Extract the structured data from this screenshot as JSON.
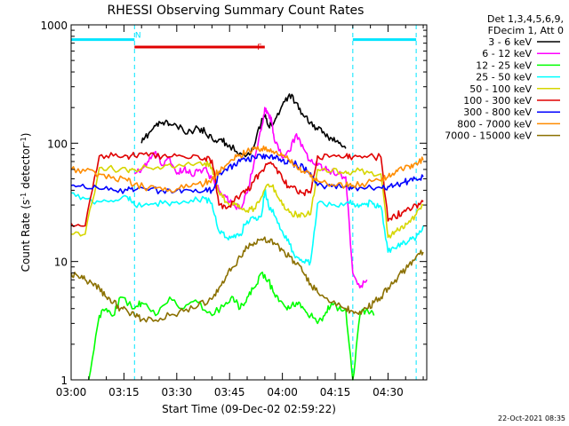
{
  "chart_data": {
    "type": "line",
    "title": "RHESSI Observing Summary Count Rates",
    "xlabel": "Start Time (09-Dec-02 02:59:22)",
    "ylabel": "Count Rate (s⁻¹ detector⁻¹)",
    "ylabel_base": "Count Rate (s",
    "ylabel_sup1": "-1",
    "ylabel_mid": " detector",
    "ylabel_sup2": "-1",
    "ylabel_end": ")",
    "yscale": "log",
    "ylim": [
      1,
      1000
    ],
    "xlim_minutes": [
      0,
      101
    ],
    "x_unit": "minutes since 03:00",
    "x_ticks": [
      {
        "label": "03:00",
        "min": 0
      },
      {
        "label": "03:15",
        "min": 15
      },
      {
        "label": "03:30",
        "min": 30
      },
      {
        "label": "03:45",
        "min": 45
      },
      {
        "label": "04:00",
        "min": 60
      },
      {
        "label": "04:15",
        "min": 75
      },
      {
        "label": "04:30",
        "min": 90
      }
    ],
    "y_ticks": [
      {
        "label": "1",
        "value": 1
      },
      {
        "label": "10",
        "value": 10
      },
      {
        "label": "100",
        "value": 100
      },
      {
        "label": "1000",
        "value": 1000
      }
    ],
    "legend_header": [
      "Det 1,3,4,5,6,9,",
      "FDecim 1, Att 0"
    ],
    "legend_position": "right",
    "flags": [
      {
        "label": "N",
        "color": "#00e5ff",
        "y_value": 750,
        "segments": [
          [
            0,
            18
          ],
          [
            80,
            98
          ]
        ]
      },
      {
        "label": "F",
        "color": "#e00000",
        "y_value": 650,
        "segments": [
          [
            18,
            55
          ]
        ]
      }
    ],
    "night_boundaries_min": [
      18,
      80,
      98
    ],
    "series": [
      {
        "name": "3 - 6 keV",
        "color": "#000000",
        "x": [
          20,
          22,
          24,
          26,
          28,
          30,
          33,
          36,
          38,
          40,
          42,
          44,
          47,
          50,
          52,
          54,
          55,
          56,
          58,
          60,
          62,
          64,
          66,
          68,
          70,
          72,
          74,
          76,
          78
        ],
        "y": [
          100,
          120,
          140,
          150,
          145,
          140,
          120,
          135,
          125,
          110,
          108,
          100,
          85,
          80,
          95,
          150,
          170,
          140,
          160,
          210,
          260,
          220,
          170,
          150,
          130,
          120,
          110,
          100,
          90
        ]
      },
      {
        "name": "6 - 12 keV",
        "color": "#ff00ff",
        "x": [
          18,
          20,
          22,
          24,
          26,
          28,
          30,
          32,
          34,
          36,
          38,
          40,
          42,
          44,
          46,
          48,
          50,
          52,
          54,
          55,
          56,
          57,
          58,
          60,
          62,
          64,
          66,
          68,
          70,
          72,
          74,
          76,
          78,
          80,
          82,
          84
        ],
        "y": [
          55,
          60,
          70,
          85,
          65,
          75,
          55,
          60,
          55,
          58,
          62,
          50,
          40,
          35,
          30,
          28,
          38,
          70,
          130,
          200,
          180,
          150,
          100,
          75,
          85,
          120,
          90,
          70,
          65,
          60,
          58,
          55,
          52,
          8,
          6,
          7
        ]
      },
      {
        "name": "12 - 25 keV",
        "color": "#00ff00",
        "x": [
          5,
          8,
          10,
          12,
          14,
          18,
          20,
          24,
          28,
          32,
          36,
          40,
          44,
          46,
          48,
          50,
          52,
          54,
          56,
          58,
          60,
          62,
          64,
          66,
          68,
          70,
          72,
          74,
          76,
          78,
          80,
          82,
          84,
          86
        ],
        "y": [
          1,
          3.5,
          4,
          3.5,
          5,
          4,
          4.5,
          3.5,
          5,
          4,
          4.5,
          3.5,
          4.5,
          5,
          4,
          5,
          6,
          8,
          7,
          5,
          4.5,
          4,
          4.5,
          4,
          3.5,
          3,
          3.5,
          4.5,
          4,
          4,
          1,
          3.5,
          4,
          3.5
        ]
      },
      {
        "name": "25 - 50 keV",
        "color": "#00ffff",
        "x": [
          0,
          4,
          8,
          12,
          16,
          18,
          22,
          26,
          30,
          34,
          38,
          40,
          42,
          44,
          46,
          48,
          50,
          52,
          54,
          55,
          56,
          58,
          60,
          62,
          64,
          66,
          68,
          70,
          74,
          78,
          80,
          82,
          84,
          86,
          88,
          90,
          92,
          94,
          96,
          98,
          100
        ],
        "y": [
          38,
          34,
          32,
          32,
          35,
          30,
          30,
          31,
          32,
          33,
          34,
          31,
          18,
          16,
          16,
          17,
          22,
          23,
          24,
          40,
          30,
          24,
          18,
          14,
          11,
          10,
          10,
          31,
          30,
          31,
          31,
          30,
          31,
          31,
          29,
          12,
          13,
          14,
          15,
          16,
          20
        ]
      },
      {
        "name": "50 - 100 keV",
        "color": "#d6d600",
        "x": [
          0,
          4,
          8,
          12,
          16,
          18,
          22,
          26,
          30,
          34,
          38,
          40,
          42,
          44,
          46,
          48,
          50,
          52,
          54,
          56,
          58,
          60,
          62,
          64,
          66,
          68,
          70,
          74,
          78,
          80,
          84,
          88,
          90,
          92,
          94,
          96,
          98,
          100
        ],
        "y": [
          17,
          17,
          62,
          60,
          58,
          60,
          62,
          62,
          64,
          66,
          68,
          62,
          38,
          32,
          30,
          28,
          27,
          28,
          35,
          45,
          40,
          30,
          26,
          25,
          25,
          25,
          60,
          58,
          58,
          58,
          58,
          55,
          16,
          18,
          20,
          22,
          25,
          30
        ]
      },
      {
        "name": "100 - 300 keV",
        "color": "#e00000",
        "x": [
          0,
          4,
          8,
          12,
          16,
          18,
          22,
          26,
          30,
          34,
          38,
          40,
          42,
          44,
          46,
          48,
          50,
          52,
          54,
          56,
          58,
          60,
          62,
          64,
          66,
          68,
          70,
          74,
          78,
          80,
          84,
          88,
          90,
          92,
          94,
          96,
          98,
          100
        ],
        "y": [
          21,
          20,
          78,
          78,
          78,
          78,
          78,
          78,
          78,
          75,
          75,
          72,
          30,
          28,
          32,
          36,
          40,
          48,
          58,
          68,
          62,
          50,
          42,
          40,
          38,
          38,
          78,
          78,
          78,
          76,
          76,
          76,
          22,
          24,
          26,
          28,
          30,
          32
        ]
      },
      {
        "name": "300 - 800 keV",
        "color": "#0000ff",
        "x": [
          0,
          4,
          8,
          12,
          16,
          18,
          22,
          26,
          30,
          34,
          38,
          40,
          42,
          44,
          46,
          48,
          50,
          52,
          54,
          56,
          58,
          60,
          62,
          64,
          66,
          68,
          70,
          74,
          78,
          80,
          84,
          88,
          90,
          92,
          94,
          96,
          98,
          100
        ],
        "y": [
          44,
          42,
          41,
          40,
          40,
          40,
          40,
          40,
          40,
          40,
          40,
          40,
          55,
          60,
          65,
          70,
          74,
          76,
          78,
          76,
          74,
          72,
          70,
          66,
          62,
          56,
          44,
          43,
          43,
          42,
          42,
          42,
          43,
          44,
          46,
          48,
          50,
          52
        ]
      },
      {
        "name": "800 - 7000 keV",
        "color": "#ff8c00",
        "x": [
          0,
          4,
          8,
          12,
          16,
          18,
          22,
          26,
          30,
          34,
          38,
          40,
          42,
          44,
          46,
          48,
          50,
          52,
          54,
          56,
          58,
          60,
          62,
          64,
          66,
          68,
          70,
          74,
          78,
          80,
          84,
          88,
          90,
          92,
          94,
          96,
          98,
          100
        ],
        "y": [
          60,
          58,
          55,
          52,
          48,
          45,
          42,
          40,
          41,
          43,
          46,
          50,
          58,
          65,
          72,
          80,
          86,
          90,
          90,
          88,
          84,
          78,
          72,
          64,
          58,
          52,
          48,
          45,
          44,
          44,
          46,
          48,
          52,
          56,
          60,
          64,
          68,
          72
        ]
      },
      {
        "name": "7000 - 15000 keV",
        "color": "#8b7000",
        "x": [
          0,
          2,
          4,
          6,
          8,
          10,
          12,
          14,
          16,
          18,
          20,
          24,
          28,
          32,
          36,
          40,
          42,
          44,
          46,
          48,
          50,
          52,
          54,
          56,
          58,
          60,
          62,
          64,
          66,
          68,
          70,
          74,
          78,
          80,
          82,
          84,
          86,
          88,
          90,
          92,
          94,
          96,
          98,
          100
        ],
        "y": [
          8,
          7.5,
          7,
          6.5,
          6,
          5,
          4.5,
          4,
          3.8,
          3.5,
          3.2,
          3.2,
          3.5,
          3.8,
          4.2,
          4.8,
          6,
          7.5,
          9,
          11,
          13,
          14.5,
          15.5,
          15,
          14,
          12.5,
          11,
          9.5,
          8,
          6.5,
          5.5,
          4.5,
          4,
          3.8,
          3.8,
          4,
          4.5,
          5,
          6,
          7,
          8,
          9.5,
          11,
          12
        ]
      }
    ]
  },
  "timestamp": "22-Oct-2021 08:35"
}
